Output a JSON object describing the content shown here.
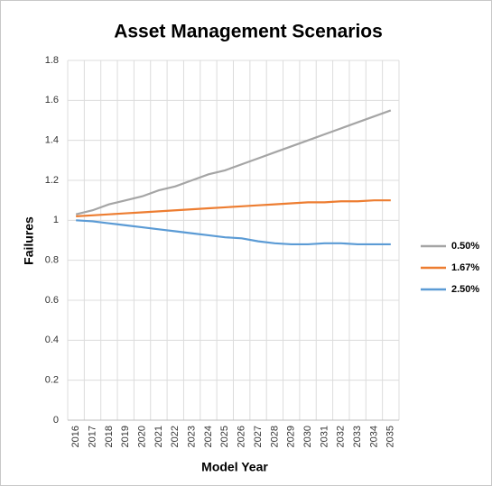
{
  "chart_data": {
    "type": "line",
    "title": "Asset Management Scenarios",
    "x_label": "Model Year",
    "y_label": "Failures",
    "categories": [
      "2016",
      "2017",
      "2018",
      "2019",
      "2020",
      "2021",
      "2022",
      "2023",
      "2024",
      "2025",
      "2026",
      "2027",
      "2028",
      "2029",
      "2030",
      "2031",
      "2032",
      "2033",
      "2034",
      "2035"
    ],
    "series": [
      {
        "name": "0.50%",
        "color": "#a5a5a5",
        "values": [
          1.03,
          1.05,
          1.08,
          1.1,
          1.12,
          1.15,
          1.17,
          1.2,
          1.23,
          1.25,
          1.28,
          1.31,
          1.34,
          1.37,
          1.4,
          1.43,
          1.46,
          1.49,
          1.52,
          1.55
        ]
      },
      {
        "name": "1.67%",
        "color": "#ed7d31",
        "values": [
          1.02,
          1.025,
          1.03,
          1.035,
          1.04,
          1.045,
          1.05,
          1.055,
          1.06,
          1.065,
          1.07,
          1.075,
          1.08,
          1.085,
          1.09,
          1.09,
          1.095,
          1.095,
          1.1,
          1.1
        ]
      },
      {
        "name": "2.50%",
        "color": "#5b9bd5",
        "values": [
          1.0,
          0.995,
          0.985,
          0.975,
          0.965,
          0.955,
          0.945,
          0.935,
          0.925,
          0.915,
          0.91,
          0.895,
          0.885,
          0.88,
          0.88,
          0.885,
          0.885,
          0.88,
          0.88,
          0.88
        ]
      }
    ],
    "ylim": [
      0,
      1.8
    ],
    "yticks": [
      0,
      0.2,
      0.4,
      0.6,
      0.8,
      1,
      1.2,
      1.4,
      1.6,
      1.8
    ],
    "grid": true,
    "legend": "right"
  }
}
